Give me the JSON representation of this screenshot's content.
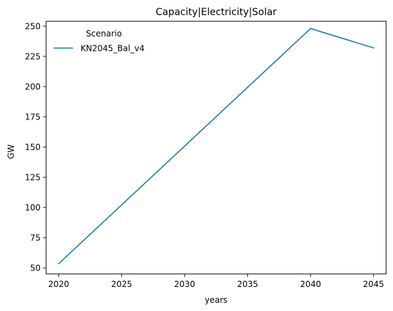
{
  "chart_data": {
    "type": "line",
    "title": "Capacity|Electricity|Solar",
    "xlabel": "years",
    "ylabel": "GW",
    "x": [
      2020,
      2025,
      2030,
      2035,
      2040,
      2045
    ],
    "xticks": [
      "2020",
      "2025",
      "2030",
      "2035",
      "2040",
      "2045"
    ],
    "yticks": [
      "50",
      "75",
      "100",
      "125",
      "150",
      "175",
      "200",
      "225",
      "250"
    ],
    "xlim": [
      2019,
      2046
    ],
    "ylim": [
      45,
      254
    ],
    "grid": false,
    "legend": {
      "title": "Scenario",
      "placement": "top-left",
      "frame": false
    },
    "series": [
      {
        "name": "KN2045_Bal_v4",
        "color": "#1f77b4",
        "x": [
          2020,
          2040,
          2045
        ],
        "values": [
          53.5,
          248,
          232
        ]
      }
    ]
  }
}
